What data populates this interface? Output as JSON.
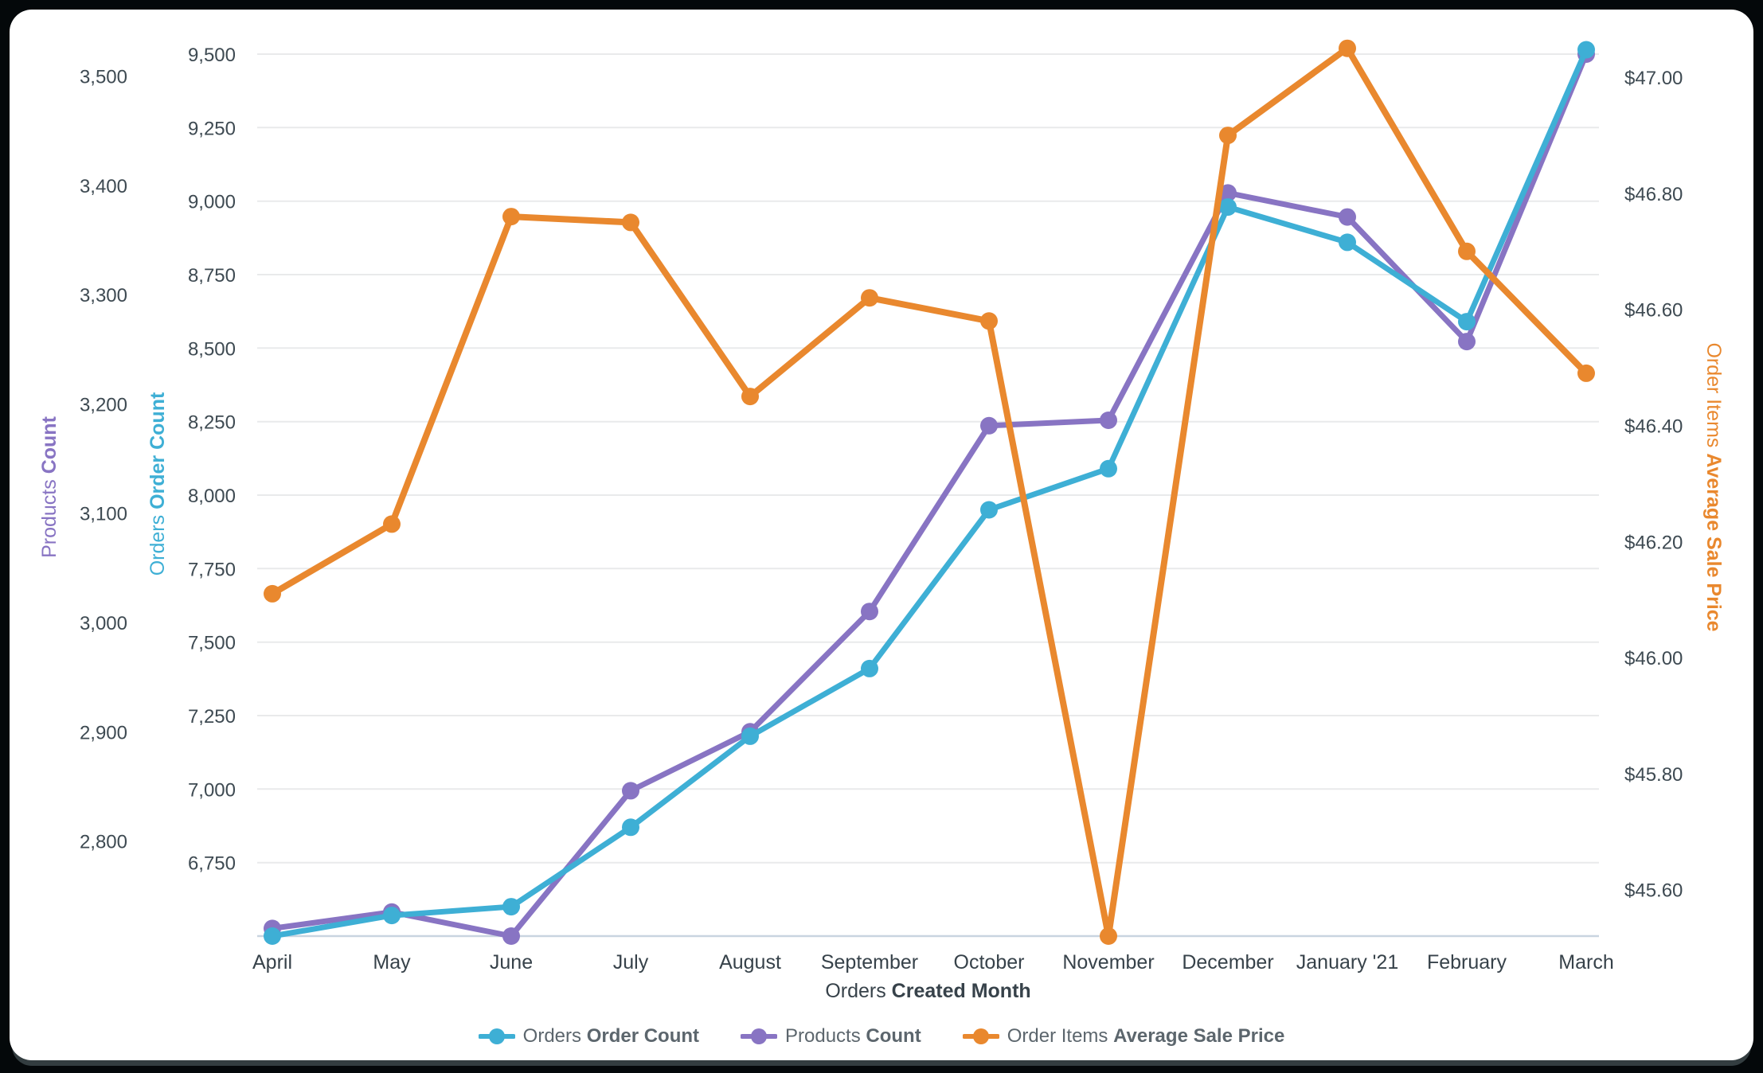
{
  "frame": {
    "background": "#04080a",
    "card_background": "#ffffff"
  },
  "chart_data": {
    "type": "line",
    "grid": "horizontal",
    "legend_position": "bottom",
    "gridline_color": "#e9eaeb",
    "baseline_color": "#c9d4e0",
    "tick_color": "#3e4a52",
    "legend_text_color": "#5c666d",
    "x_axis": {
      "title_regular": "Orders",
      "title_bold": "Created Month",
      "categories": [
        "April",
        "May",
        "June",
        "July",
        "August",
        "September",
        "October",
        "November",
        "December",
        "January '21",
        "February",
        "March"
      ]
    },
    "y_axes": {
      "products": {
        "title_regular": "Products",
        "title_bold": "Count",
        "color": "#8874c3",
        "side": "left-outer",
        "format": "number",
        "ticks": [
          2800,
          2900,
          3000,
          3100,
          3200,
          3300,
          3400,
          3500
        ],
        "ylim": [
          2713,
          3520
        ]
      },
      "orders": {
        "title_regular": "Orders",
        "title_bold": "Order Count",
        "color": "#3eafd5",
        "side": "left-inner",
        "format": "number",
        "ticks": [
          6750,
          7000,
          7250,
          7500,
          7750,
          8000,
          8250,
          8500,
          8750,
          9000,
          9250,
          9500
        ],
        "ylim": [
          6500,
          9500
        ]
      },
      "price": {
        "title_regular": "Order Items",
        "title_bold": "Average Sale Price",
        "color": "#e9882e",
        "side": "right",
        "format": "currency",
        "ticks": [
          45.6,
          45.8,
          46.0,
          46.2,
          46.4,
          46.6,
          46.8,
          47.0
        ],
        "ylim": [
          45.52,
          47.04
        ]
      }
    },
    "series": [
      {
        "id": "orders-order-count",
        "label_regular": "Orders",
        "label_bold": "Order Count",
        "axis": "orders",
        "color": "#3eafd5",
        "line_width": 7,
        "values": [
          6500,
          6570,
          6600,
          6870,
          7180,
          7410,
          7950,
          8090,
          8980,
          8860,
          8590,
          9515
        ]
      },
      {
        "id": "products-count",
        "label_regular": "Products",
        "label_bold": "Count",
        "axis": "products",
        "color": "#8874c3",
        "line_width": 7,
        "values": [
          2720,
          2735,
          2713,
          2846,
          2900,
          3010,
          3180,
          3185,
          3393,
          3371,
          3257,
          3520
        ]
      },
      {
        "id": "order-items-average-sale-price",
        "label_regular": "Order Items",
        "label_bold": "Average Sale Price",
        "axis": "price",
        "color": "#e9882e",
        "line_width": 8,
        "values": [
          46.11,
          46.23,
          46.76,
          46.75,
          46.45,
          46.62,
          46.58,
          45.52,
          46.9,
          47.05,
          46.7,
          46.49
        ]
      }
    ]
  }
}
